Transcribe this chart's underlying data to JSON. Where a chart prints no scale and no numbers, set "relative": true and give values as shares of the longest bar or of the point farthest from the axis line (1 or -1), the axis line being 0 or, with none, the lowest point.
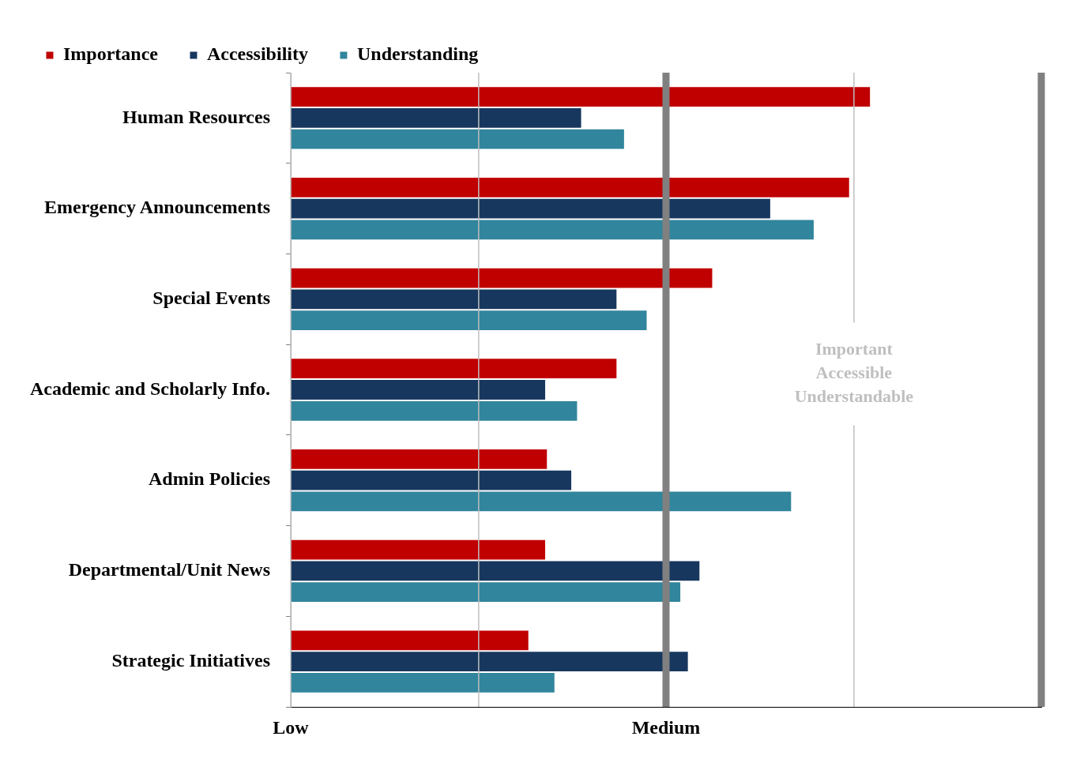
{
  "chart_data": {
    "type": "bar",
    "orientation": "horizontal",
    "relative": true,
    "categories": [
      "Human Resources",
      "Emergency Announcements",
      "Special Events",
      "Academic and Scholarly Info.",
      "Admin Policies",
      "Departmental/Unit News",
      "Strategic Initiatives"
    ],
    "series": [
      {
        "name": "Importance",
        "color": "#c00000",
        "values": [
          1,
          0.964,
          0.728,
          0.563,
          0.443,
          0.44,
          0.411
        ]
      },
      {
        "name": "Accessibility",
        "color": "#17375e",
        "values": [
          0.502,
          0.828,
          0.563,
          0.44,
          0.485,
          0.706,
          0.686
        ]
      },
      {
        "name": "Understanding",
        "color": "#31859c",
        "values": [
          0.576,
          0.903,
          0.615,
          0.495,
          0.864,
          0.673,
          0.456
        ]
      }
    ],
    "ref_lines": [
      {
        "axis": "x",
        "value": 0,
        "label": "Low",
        "color": "#bfbfbf"
      },
      {
        "axis": "x",
        "value": 0.324,
        "label": null,
        "color": "#bfbfbf"
      },
      {
        "axis": "x",
        "value": 0.647,
        "label": "Medium",
        "color": "#808080"
      },
      {
        "axis": "x",
        "value": 0.971,
        "label": null,
        "color": "#bfbfbf"
      },
      {
        "axis": "x",
        "value": 1.294,
        "label": null,
        "color": "#808080"
      }
    ],
    "annotations": [
      "Important Accessible Understandable"
    ],
    "legend": "top left"
  }
}
